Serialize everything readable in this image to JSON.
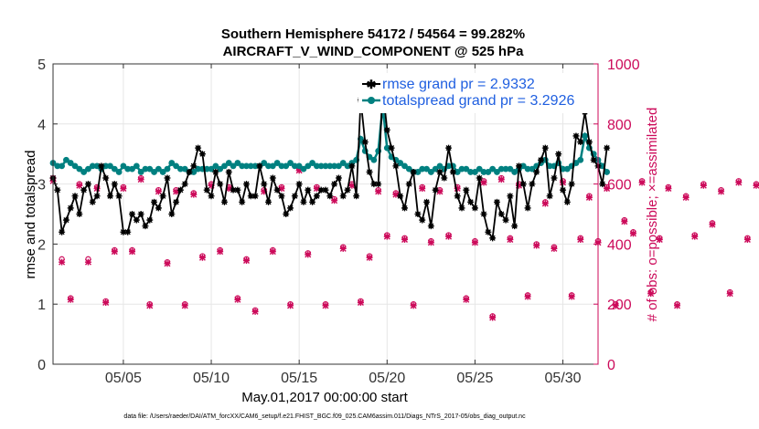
{
  "chart_data": {
    "type": "line",
    "title_line1": "Southern Hemisphere 54172 / 54564 = 99.282%",
    "title_line2": "AIRCRAFT_V_WIND_COMPONENT @ 525 hPa",
    "xlabel": "May.01,2017 00:00:00 start",
    "ylabel_left": "rmse and totalspread",
    "ylabel_right": "# of obs: o=possible; ×=assimilated",
    "footer": "data file: /Users/raeder/DAI/ATM_forcXX/CAM6_setup/f.e21.FHIST_BGC.f09_025.CAM6assim.011/Diags_NTrS_2017-05/obs_diag_output.nc",
    "xlim": [
      1,
      32
    ],
    "ylim_left": [
      0,
      5
    ],
    "ylim_right": [
      0,
      1000
    ],
    "x_ticks": [
      5,
      10,
      15,
      20,
      25,
      30
    ],
    "x_tick_labels": [
      "05/05",
      "05/10",
      "05/15",
      "05/20",
      "05/25",
      "05/30"
    ],
    "y_ticks_left": [
      0,
      1,
      2,
      3,
      4,
      5
    ],
    "y_ticks_right": [
      0,
      200,
      400,
      600,
      800,
      1000
    ],
    "colors": {
      "rmse": "#000000",
      "spread": "#008080",
      "obs": "#cc0a5a",
      "legend_text": "#1f5fe0",
      "right_axis": "#cc0a5a"
    },
    "series": [
      {
        "name": "rmse grand pr = 2.9332",
        "marker": "asterisk",
        "x_start": 1,
        "x_step": 0.25,
        "values": [
          3.1,
          2.9,
          2.2,
          2.4,
          2.6,
          2.8,
          2.5,
          2.9,
          3.0,
          2.7,
          2.8,
          3.3,
          3.1,
          2.8,
          3.0,
          2.8,
          2.2,
          2.2,
          2.5,
          2.4,
          2.5,
          2.3,
          2.4,
          2.7,
          2.6,
          2.8,
          3.1,
          2.5,
          2.7,
          2.9,
          3.0,
          3.2,
          3.3,
          3.6,
          3.5,
          2.9,
          2.8,
          3.2,
          3.0,
          2.7,
          3.2,
          2.9,
          2.9,
          2.7,
          3.0,
          2.8,
          2.8,
          3.3,
          3.0,
          2.7,
          3.1,
          2.9,
          2.8,
          2.5,
          2.6,
          2.8,
          3.0,
          2.7,
          2.9,
          2.7,
          2.8,
          2.9,
          2.9,
          2.8,
          3.0,
          3.1,
          2.8,
          2.9,
          3.3,
          2.8,
          4.4,
          3.7,
          3.2,
          3.0,
          3.0,
          4.6,
          3.9,
          3.6,
          3.3,
          2.8,
          2.6,
          3.0,
          3.2,
          2.5,
          2.4,
          2.7,
          2.3,
          2.9,
          3.2,
          3.1,
          3.6,
          3.2,
          2.8,
          2.6,
          2.9,
          2.7,
          2.6,
          3.1,
          2.5,
          2.2,
          2.1,
          2.7,
          2.5,
          2.4,
          2.8,
          2.3,
          3.3,
          3.0,
          2.6,
          3.0,
          3.2,
          3.4,
          3.6,
          2.8,
          3.1,
          3.5,
          2.9,
          2.7,
          3.0,
          3.8,
          3.7,
          4.2,
          3.7,
          3.4,
          3.3,
          3.0,
          3.6
        ]
      },
      {
        "name": "totalspread grand pr = 3.2926",
        "marker": "circle",
        "x_start": 1,
        "x_step": 0.25,
        "values": [
          3.35,
          3.3,
          3.3,
          3.4,
          3.35,
          3.3,
          3.25,
          3.2,
          3.25,
          3.3,
          3.3,
          3.25,
          3.3,
          3.3,
          3.25,
          3.2,
          3.3,
          3.25,
          3.25,
          3.3,
          3.2,
          3.25,
          3.25,
          3.2,
          3.25,
          3.2,
          3.25,
          3.35,
          3.3,
          3.25,
          3.25,
          3.2,
          3.2,
          3.25,
          3.25,
          3.25,
          3.25,
          3.3,
          3.25,
          3.3,
          3.35,
          3.3,
          3.35,
          3.3,
          3.3,
          3.3,
          3.3,
          3.3,
          3.35,
          3.3,
          3.3,
          3.35,
          3.3,
          3.3,
          3.35,
          3.3,
          3.3,
          3.25,
          3.3,
          3.35,
          3.3,
          3.3,
          3.3,
          3.3,
          3.3,
          3.3,
          3.35,
          3.3,
          3.35,
          3.4,
          3.75,
          3.55,
          3.45,
          3.4,
          3.55,
          4.3,
          3.6,
          3.45,
          3.4,
          3.35,
          3.3,
          3.25,
          3.2,
          3.2,
          3.25,
          3.25,
          3.2,
          3.25,
          3.3,
          3.25,
          3.3,
          3.3,
          3.2,
          3.25,
          3.25,
          3.2,
          3.2,
          3.25,
          3.2,
          3.2,
          3.25,
          3.2,
          3.25,
          3.25,
          3.25,
          3.2,
          3.25,
          3.3,
          3.25,
          3.25,
          3.3,
          3.35,
          3.4,
          3.3,
          3.3,
          3.35,
          3.25,
          3.25,
          3.3,
          3.35,
          3.4,
          3.8,
          3.6,
          3.5,
          3.4,
          3.3,
          3.2
        ]
      },
      {
        "name": "obs possible",
        "marker": "o",
        "axis": "right",
        "x_start": 1,
        "x_step": 0.5,
        "values": [
          620,
          350,
          220,
          600,
          350,
          590,
          210,
          380,
          590,
          380,
          620,
          200,
          580,
          340,
          580,
          200,
          570,
          360,
          600,
          380,
          590,
          220,
          350,
          180,
          580,
          380,
          590,
          200,
          650,
          370,
          590,
          200,
          550,
          390,
          600,
          210,
          360,
          580,
          430,
          570,
          420,
          200,
          590,
          410,
          580,
          430,
          590,
          220,
          410,
          610,
          160,
          620,
          420,
          600,
          230,
          400,
          540,
          390,
          610,
          230,
          420,
          560,
          410,
          590,
          200,
          480,
          440,
          610,
          240,
          420,
          590,
          200,
          560,
          430,
          600,
          470,
          580,
          240,
          610,
          420,
          600,
          250
        ]
      },
      {
        "name": "obs assimilated",
        "marker": "x",
        "axis": "right",
        "x_start": 1,
        "x_step": 0.5,
        "values": [
          610,
          340,
          215,
          595,
          340,
          585,
          205,
          375,
          585,
          375,
          615,
          195,
          575,
          335,
          575,
          195,
          565,
          355,
          595,
          375,
          585,
          215,
          345,
          175,
          575,
          375,
          585,
          195,
          645,
          365,
          585,
          195,
          545,
          385,
          595,
          205,
          355,
          575,
          425,
          565,
          415,
          195,
          585,
          405,
          575,
          425,
          585,
          215,
          405,
          605,
          155,
          615,
          415,
          595,
          225,
          395,
          535,
          385,
          605,
          225,
          415,
          555,
          405,
          585,
          195,
          475,
          435,
          605,
          235,
          415,
          585,
          195,
          555,
          425,
          595,
          465,
          575,
          235,
          605,
          415,
          595,
          245
        ]
      }
    ]
  }
}
